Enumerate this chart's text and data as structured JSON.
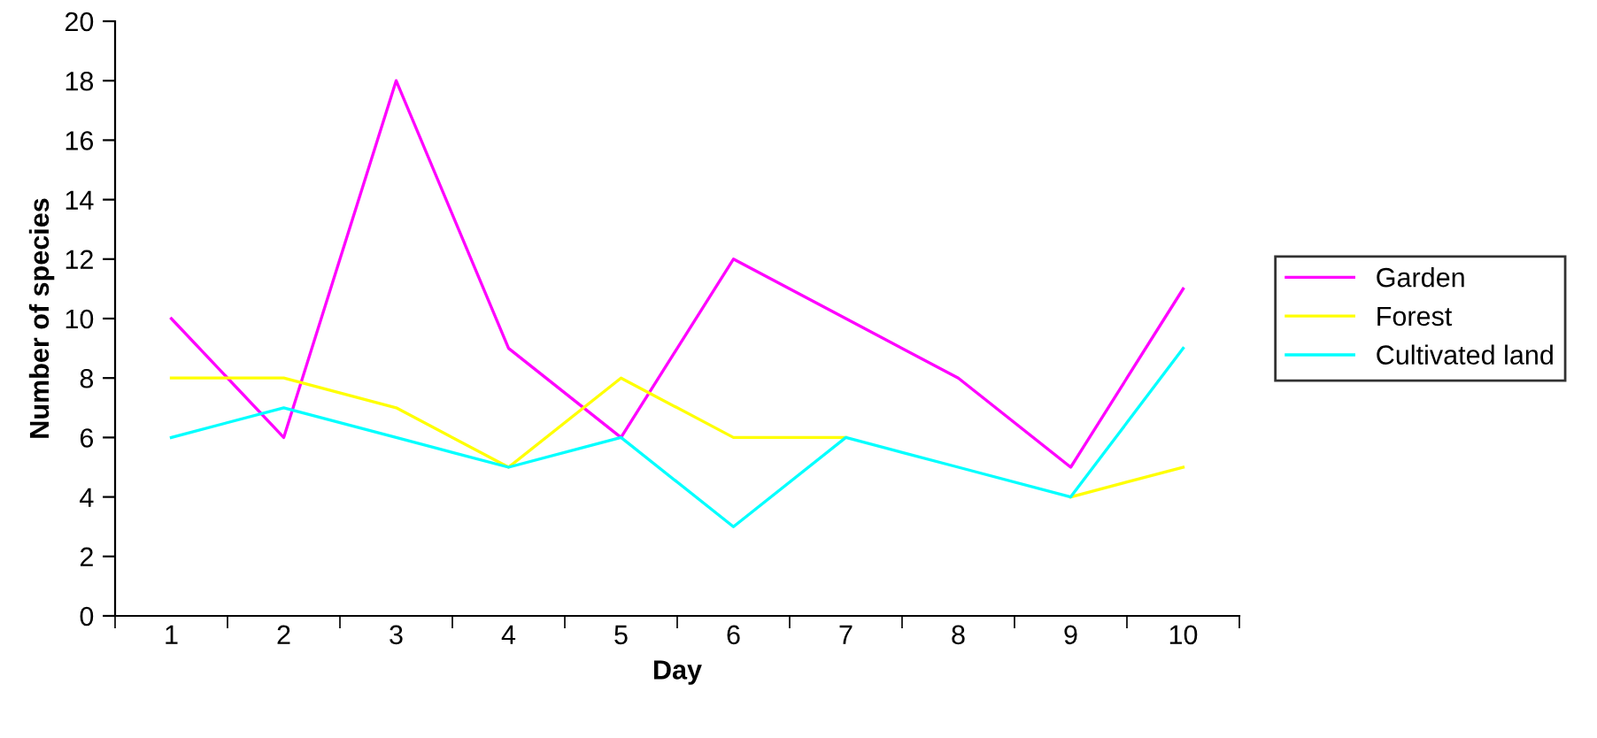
{
  "chart_data": {
    "type": "line",
    "xlabel": "Day",
    "ylabel": "Number of species",
    "categories": [
      "1",
      "2",
      "3",
      "4",
      "5",
      "6",
      "7",
      "8",
      "9",
      "10"
    ],
    "series": [
      {
        "name": "Garden",
        "color": "#ff00ff",
        "values": [
          10,
          6,
          18,
          9,
          6,
          12,
          10,
          8,
          5,
          11
        ]
      },
      {
        "name": "Forest",
        "color": "#ffff00",
        "values": [
          8,
          8,
          7,
          5,
          8,
          6,
          6,
          null,
          4,
          5
        ]
      },
      {
        "name": "Cultivated land",
        "color": "#00ffff",
        "values": [
          6,
          7,
          6,
          5,
          6,
          3,
          6,
          5,
          4,
          9
        ]
      }
    ],
    "ylim": [
      0,
      20
    ],
    "yticks": [
      0,
      2,
      4,
      6,
      8,
      10,
      12,
      14,
      16,
      18,
      20
    ],
    "grid": false,
    "legend": "right",
    "marker": "none",
    "line_style": "solid"
  }
}
